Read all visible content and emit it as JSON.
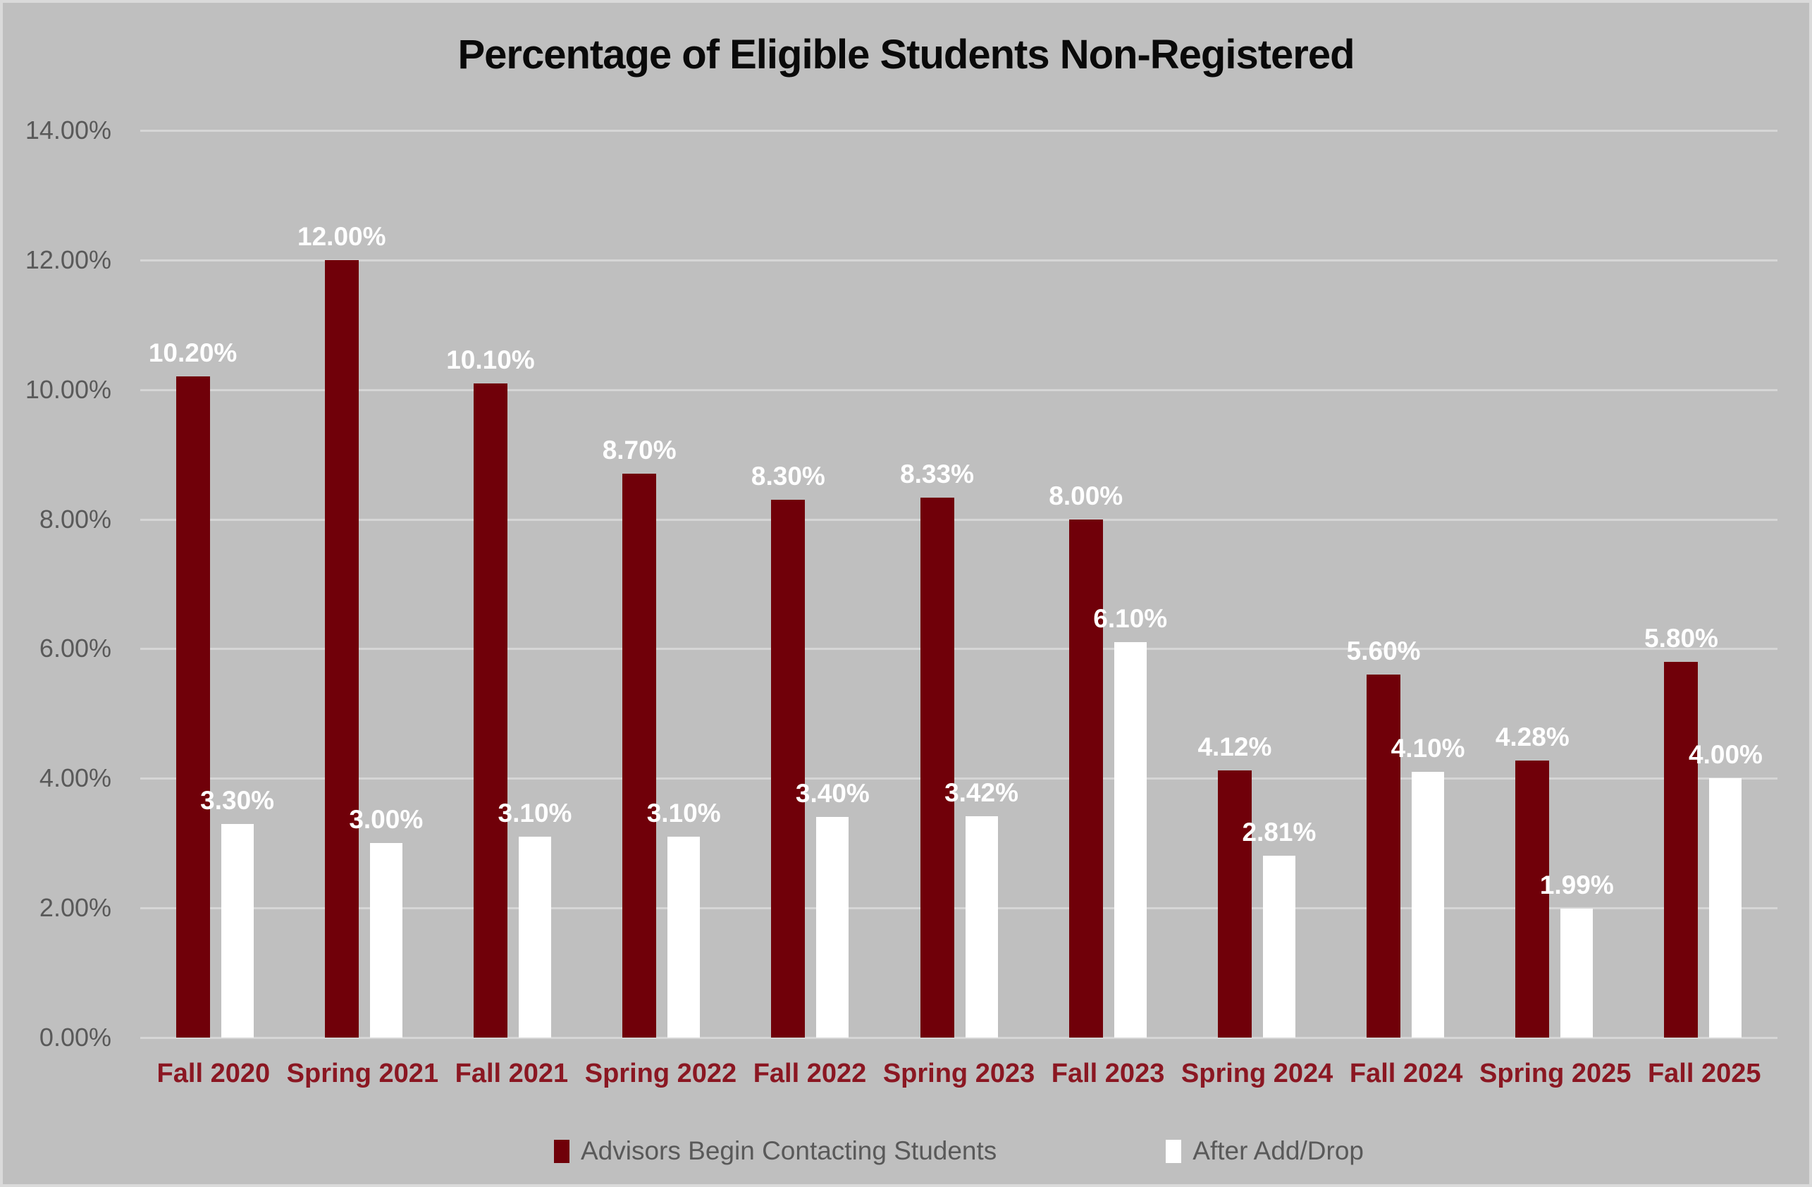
{
  "title": "Percentage of Eligible Students Non-Registered",
  "colors": {
    "background": "#BFBFBF",
    "border": "#DADADA",
    "gridline": "#D6D6D6",
    "title_text": "#0A0A0A",
    "axis_text": "#595959",
    "category_text": "#8B1722",
    "data_label_text": "#FFFFFF",
    "series_advisors": "#700009",
    "series_after_add_drop": "#FFFFFF"
  },
  "chart_data": {
    "type": "bar",
    "title": "Percentage of Eligible Students Non-Registered",
    "xlabel": "",
    "ylabel": "",
    "grid": true,
    "legend_position": "bottom",
    "y_axis": {
      "min": 0,
      "max": 14,
      "step": 2,
      "tick_labels": [
        "0.00%",
        "2.00%",
        "4.00%",
        "6.00%",
        "8.00%",
        "10.00%",
        "12.00%",
        "14.00%"
      ]
    },
    "categories": [
      "Fall 2020",
      "Spring 2021",
      "Fall 2021",
      "Spring 2022",
      "Fall 2022",
      "Spring 2023",
      "Fall 2023",
      "Spring 2024",
      "Fall 2024",
      "Spring 2025",
      "Fall 2025"
    ],
    "series": [
      {
        "name": "Advisors Begin Contacting Students",
        "color": "#700009",
        "values": [
          10.2,
          12.0,
          10.1,
          8.7,
          8.3,
          8.33,
          8.0,
          4.12,
          5.6,
          4.28,
          5.8
        ],
        "labels": [
          "10.20%",
          "12.00%",
          "10.10%",
          "8.70%",
          "8.30%",
          "8.33%",
          "8.00%",
          "4.12%",
          "5.60%",
          "4.28%",
          "5.80%"
        ]
      },
      {
        "name": "After Add/Drop",
        "color": "#FFFFFF",
        "values": [
          3.3,
          3.0,
          3.1,
          3.1,
          3.4,
          3.42,
          6.1,
          2.81,
          4.1,
          1.99,
          4.0
        ],
        "labels": [
          "3.30%",
          "3.00%",
          "3.10%",
          "3.10%",
          "3.40%",
          "3.42%",
          "6.10%",
          "2.81%",
          "4.10%",
          "1.99%",
          "4.00%"
        ]
      }
    ]
  }
}
